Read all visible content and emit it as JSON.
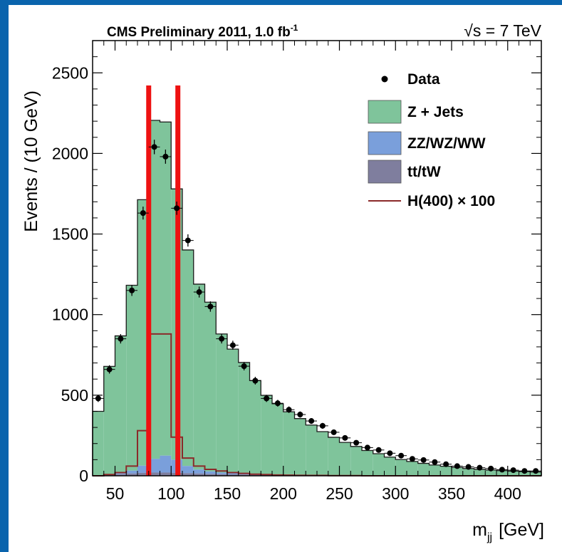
{
  "chart_data": {
    "type": "bar",
    "title": "CMS Preliminary 2011, 1.0 fb",
    "title_sup": "-1",
    "energy": "√s = 7 TeV",
    "xlabel": "m",
    "xlabel_sub": "jj",
    "xlabel_unit": "[GeV]",
    "ylabel": "Events / (10 GeV)",
    "xlim": [
      30,
      430
    ],
    "ylim": [
      0,
      2700
    ],
    "xticks": [
      "50",
      "100",
      "150",
      "200",
      "250",
      "300",
      "350",
      "400"
    ],
    "yticks": [
      "0",
      "500",
      "1000",
      "1500",
      "2000",
      "2500"
    ],
    "bin_edges": [
      30,
      40,
      50,
      60,
      70,
      80,
      90,
      100,
      110,
      120,
      130,
      140,
      150,
      160,
      170,
      180,
      190,
      200,
      210,
      220,
      230,
      240,
      250,
      260,
      270,
      280,
      290,
      300,
      310,
      320,
      330,
      340,
      350,
      360,
      370,
      380,
      390,
      400,
      410,
      420,
      430
    ],
    "series": [
      {
        "name": "Z + Jets",
        "color": "#7fc49b",
        "values": [
          400,
          670,
          850,
          1150,
          1650,
          2100,
          2070,
          1680,
          1340,
          1150,
          1050,
          860,
          770,
          690,
          580,
          490,
          440,
          390,
          350,
          310,
          270,
          235,
          205,
          180,
          155,
          135,
          115,
          100,
          88,
          76,
          66,
          58,
          51,
          45,
          40,
          36,
          32,
          29,
          26,
          24
        ]
      },
      {
        "name": "ZZ/WZ/WW",
        "color": "#7a9fdb",
        "values": [
          0,
          3,
          8,
          18,
          45,
          85,
          105,
          82,
          45,
          25,
          15,
          10,
          7,
          5,
          4,
          3,
          2,
          2,
          1,
          1,
          1,
          1,
          0,
          0,
          0,
          0,
          0,
          0,
          0,
          0,
          0,
          0,
          0,
          0,
          0,
          0,
          0,
          0,
          0,
          0
        ]
      },
      {
        "name": "tt/tW",
        "color": "#7f7e9e",
        "values": [
          0,
          6,
          10,
          14,
          18,
          20,
          20,
          18,
          16,
          14,
          12,
          10,
          9,
          8,
          7,
          6,
          5,
          5,
          4,
          4,
          3,
          3,
          2,
          2,
          2,
          2,
          1,
          1,
          1,
          1,
          1,
          1,
          1,
          0,
          0,
          0,
          0,
          0,
          0,
          0
        ]
      },
      {
        "name": "H(400) × 100",
        "color": "#8b2a2a",
        "values": [
          0,
          8,
          20,
          60,
          280,
          880,
          880,
          240,
          110,
          60,
          40,
          30,
          20,
          15,
          10,
          8,
          5,
          4,
          3,
          2,
          2,
          1,
          1,
          1,
          0,
          0,
          0,
          0,
          0,
          0,
          0,
          0,
          0,
          0,
          0,
          0,
          0,
          0,
          0,
          0
        ]
      },
      {
        "name": "Data",
        "color": "#000000",
        "x": [
          35,
          45,
          55,
          65,
          75,
          85,
          95,
          105,
          115,
          125,
          135,
          145,
          155,
          165,
          175,
          185,
          195,
          205,
          215,
          225,
          235,
          245,
          255,
          265,
          275,
          285,
          295,
          305,
          315,
          325,
          335,
          345,
          355,
          365,
          375,
          385,
          395,
          405,
          415,
          425
        ],
        "values": [
          480,
          660,
          850,
          1150,
          1630,
          2040,
          1980,
          1660,
          1460,
          1140,
          1050,
          850,
          810,
          680,
          590,
          480,
          450,
          410,
          380,
          340,
          310,
          270,
          235,
          205,
          175,
          160,
          140,
          125,
          105,
          98,
          85,
          72,
          60,
          55,
          50,
          45,
          38,
          35,
          30,
          30
        ],
        "errors": [
          22,
          26,
          29,
          34,
          40,
          45,
          44,
          41,
          38,
          34,
          32,
          29,
          28,
          26,
          24,
          22,
          21,
          20,
          19,
          18,
          18,
          16,
          15,
          14,
          13,
          13,
          12,
          11,
          10,
          10,
          9,
          8,
          8,
          7,
          7,
          7,
          6,
          6,
          5,
          5
        ]
      }
    ],
    "markers": [
      80,
      106
    ],
    "marker_color": "#ee1111",
    "legend_position": "top-right",
    "legend_order": [
      "Data",
      "Z + Jets",
      "ZZ/WZ/WW",
      "tt/tW",
      "H(400) × 100"
    ]
  }
}
